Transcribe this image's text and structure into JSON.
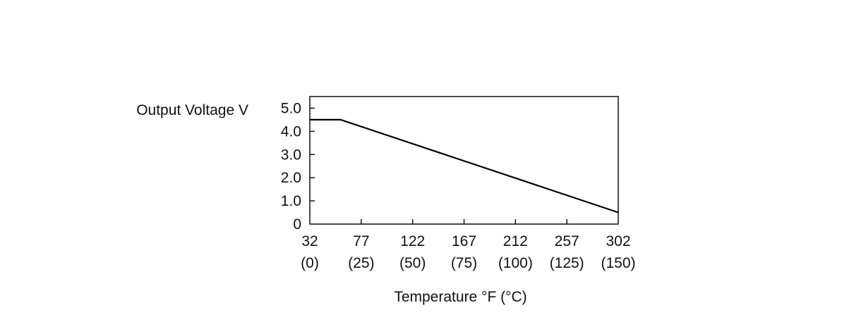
{
  "chart_data": {
    "type": "line",
    "title": "",
    "ylabel": "Output Voltage V",
    "xlabel": "Temperature °F (°C)",
    "x_unit": "°C",
    "xlim": [
      0,
      150
    ],
    "ylim": [
      0,
      5.5
    ],
    "grid": false,
    "legend": "none",
    "x_ticks": [
      {
        "value": 0,
        "label_f": "32",
        "label_c": "(0)"
      },
      {
        "value": 25,
        "label_f": "77",
        "label_c": "(25)"
      },
      {
        "value": 50,
        "label_f": "122",
        "label_c": "(50)"
      },
      {
        "value": 75,
        "label_f": "167",
        "label_c": "(75)"
      },
      {
        "value": 100,
        "label_f": "212",
        "label_c": "(100)"
      },
      {
        "value": 125,
        "label_f": "257",
        "label_c": "(125)"
      },
      {
        "value": 150,
        "label_f": "302",
        "label_c": "(150)"
      }
    ],
    "y_ticks": [
      {
        "value": 0,
        "label": "0"
      },
      {
        "value": 1,
        "label": "1.0"
      },
      {
        "value": 2,
        "label": "2.0"
      },
      {
        "value": 3,
        "label": "3.0"
      },
      {
        "value": 4,
        "label": "4.0"
      },
      {
        "value": 5,
        "label": "5.0"
      }
    ],
    "series": [
      {
        "points": [
          {
            "x": 0,
            "y": 4.5
          },
          {
            "x": 15,
            "y": 4.5
          },
          {
            "x": 150,
            "y": 0.5
          }
        ],
        "color": "#000000"
      }
    ]
  }
}
